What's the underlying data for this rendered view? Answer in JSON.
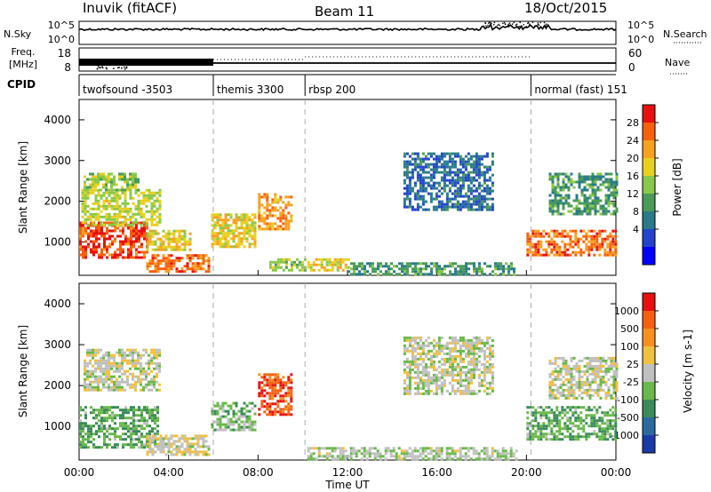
{
  "header": {
    "station": "Inuvik (fitACF)",
    "beam": "Beam 11",
    "date": "18/Oct/2015"
  },
  "nsky_panel": {
    "left_label": "N.Sky",
    "left_ticks": [
      "10^5",
      "10^0"
    ],
    "right_label": "N.Search",
    "right_ticks": [
      "10^5",
      "10^0"
    ]
  },
  "freq_panel": {
    "left_label_top": "Freq.",
    "left_label_bottom": "[MHz]",
    "left_ticks": [
      "18",
      "8"
    ],
    "right_label": "Nave",
    "right_ticks": [
      "60",
      "0"
    ],
    "cpid_label": "CPID"
  },
  "cpid_modes": [
    {
      "label": "twofsound -3503",
      "start_hour": 0
    },
    {
      "label": "themis 3300",
      "start_hour": 6.0
    },
    {
      "label": "rbsp 200",
      "start_hour": 10.1
    },
    {
      "label": "normal (fast) 151",
      "start_hour": 20.2
    }
  ],
  "x_axis": {
    "label": "Time UT",
    "ticks": [
      "00:00",
      "04:00",
      "08:00",
      "12:00",
      "16:00",
      "20:00",
      "00:00"
    ],
    "range_hours": [
      0,
      24
    ]
  },
  "power_panel": {
    "ylabel": "Slant Range [km]",
    "yticks": [
      "4000",
      "3000",
      "2000",
      "1000"
    ],
    "colorbar_label": "Power [dB]",
    "colorbar_ticks": [
      "28",
      "24",
      "20",
      "16",
      "12",
      "8",
      "4"
    ],
    "colors": [
      "#0000ff",
      "#2244cc",
      "#2a7a8a",
      "#4a9a5a",
      "#8ac84a",
      "#e8d020",
      "#f8a020",
      "#f86010",
      "#e81010"
    ]
  },
  "velocity_panel": {
    "ylabel": "Slant Range [km]",
    "yticks": [
      "4000",
      "3000",
      "2000",
      "1000"
    ],
    "colorbar_label": "Velocity [m s-1]",
    "colorbar_ticks": [
      "1000",
      "500",
      "100",
      "25",
      "-25",
      "-100",
      "-500",
      "-1000"
    ],
    "colors": [
      "#1a3aa8",
      "#2a6aa0",
      "#3a8a5a",
      "#6ab84a",
      "#c0c0c0",
      "#f0c040",
      "#f89020",
      "#f86010",
      "#e81010"
    ]
  },
  "chart_data": [
    {
      "type": "heatmap",
      "title": "Power",
      "xlabel": "Time UT",
      "ylabel": "Slant Range [km]",
      "xlim": [
        0,
        24
      ],
      "ylim": [
        180,
        4500
      ],
      "zlabel": "Power [dB]",
      "zlim": [
        0,
        32
      ],
      "regions": [
        {
          "t": [
            0.0,
            3.0
          ],
          "r": [
            600,
            1500
          ],
          "z": 28
        },
        {
          "t": [
            0.1,
            3.6
          ],
          "r": [
            1400,
            2300
          ],
          "z": 18
        },
        {
          "t": [
            0.2,
            2.6
          ],
          "r": [
            2300,
            2700
          ],
          "z": 16
        },
        {
          "t": [
            3.0,
            5.8
          ],
          "r": [
            300,
            700
          ],
          "z": 26
        },
        {
          "t": [
            3.0,
            5.0
          ],
          "r": [
            800,
            1300
          ],
          "z": 20
        },
        {
          "t": [
            5.9,
            7.9
          ],
          "r": [
            900,
            1700
          ],
          "z": 20
        },
        {
          "t": [
            8.0,
            9.5
          ],
          "r": [
            1300,
            2200
          ],
          "z": 24
        },
        {
          "t": [
            8.5,
            10.1
          ],
          "r": [
            300,
            600
          ],
          "z": 16
        },
        {
          "t": [
            10.2,
            12.0
          ],
          "r": [
            300,
            600
          ],
          "z": 20
        },
        {
          "t": [
            12.0,
            19.5
          ],
          "r": [
            200,
            500
          ],
          "z": 12
        },
        {
          "t": [
            14.5,
            18.5
          ],
          "r": [
            1800,
            3200
          ],
          "z": 8
        },
        {
          "t": [
            20.0,
            24.0
          ],
          "r": [
            700,
            1300
          ],
          "z": 26
        },
        {
          "t": [
            21.0,
            24.0
          ],
          "r": [
            1700,
            2700
          ],
          "z": 12
        }
      ]
    },
    {
      "type": "heatmap",
      "title": "Velocity",
      "xlabel": "Time UT",
      "ylabel": "Slant Range [km]",
      "xlim": [
        0,
        24
      ],
      "ylim": [
        180,
        4500
      ],
      "zlabel": "Velocity [m s-1]",
      "zlim": [
        -1000,
        1000
      ],
      "regions": [
        {
          "t": [
            0.0,
            3.5
          ],
          "r": [
            500,
            1500
          ],
          "z": -300
        },
        {
          "t": [
            0.2,
            3.6
          ],
          "r": [
            1900,
            2900
          ],
          "z": 0
        },
        {
          "t": [
            3.0,
            5.8
          ],
          "r": [
            300,
            800
          ],
          "z": 60
        },
        {
          "t": [
            5.9,
            7.9
          ],
          "r": [
            900,
            1600
          ],
          "z": -200
        },
        {
          "t": [
            8.0,
            9.5
          ],
          "r": [
            1300,
            2300
          ],
          "z": 700
        },
        {
          "t": [
            10.2,
            19.5
          ],
          "r": [
            200,
            500
          ],
          "z": -80
        },
        {
          "t": [
            14.5,
            18.5
          ],
          "r": [
            1800,
            3200
          ],
          "z": 0
        },
        {
          "t": [
            20.0,
            24.0
          ],
          "r": [
            700,
            1500
          ],
          "z": -300
        },
        {
          "t": [
            21.0,
            24.0
          ],
          "r": [
            1700,
            2700
          ],
          "z": 0
        }
      ]
    }
  ]
}
